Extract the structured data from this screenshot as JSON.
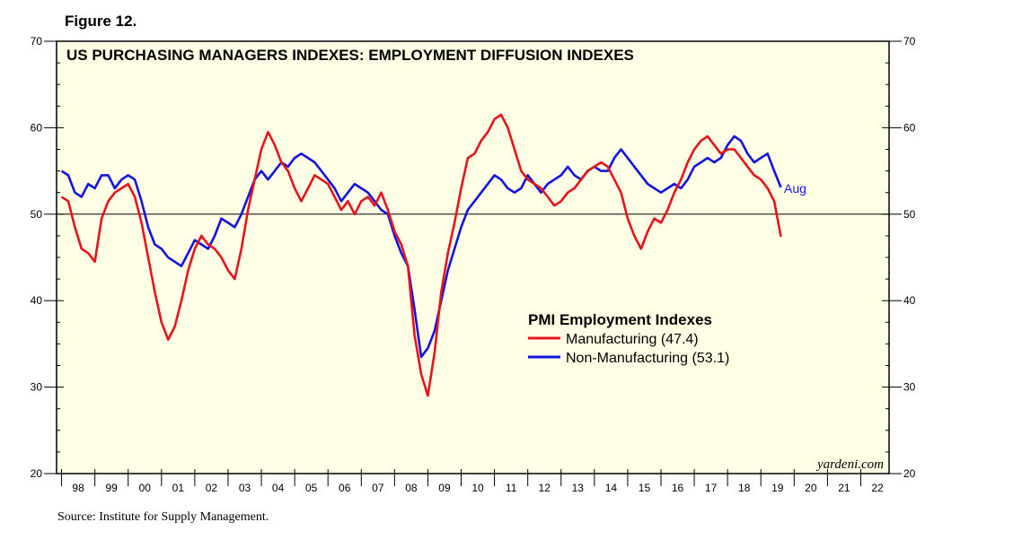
{
  "figure_label": "Figure 12.",
  "source": "Source: Institute for Supply Management.",
  "chart_data": {
    "type": "line",
    "title": "US PURCHASING MANAGERS INDEXES: EMPLOYMENT DIFFUSION INDEXES",
    "xlabel": "",
    "ylabel": "",
    "ylim": [
      20,
      70
    ],
    "y_ticks": [
      20,
      30,
      40,
      50,
      60,
      70
    ],
    "x_range": [
      1997.85,
      2022.85
    ],
    "x_tick_labels": [
      "98",
      "99",
      "00",
      "01",
      "02",
      "03",
      "04",
      "05",
      "06",
      "07",
      "08",
      "09",
      "10",
      "11",
      "12",
      "13",
      "14",
      "15",
      "16",
      "17",
      "18",
      "19",
      "20",
      "21",
      "22"
    ],
    "reference_line": 50,
    "background": "#ffffe6",
    "watermark": "yardeni.com",
    "end_label": "Aug",
    "legend": {
      "title": "PMI Employment Indexes",
      "position": "center-right",
      "entries": [
        {
          "label": "Manufacturing (47.4)",
          "color": "#e8141b"
        },
        {
          "label": "Non-Manufacturing (53.1)",
          "color": "#1414e0"
        }
      ]
    },
    "series": [
      {
        "name": "Manufacturing",
        "color": "#e8141b",
        "x": [
          1998.0,
          1998.2,
          1998.4,
          1998.6,
          1998.8,
          1999.0,
          1999.2,
          1999.4,
          1999.6,
          1999.8,
          2000.0,
          2000.2,
          2000.4,
          2000.6,
          2000.8,
          2001.0,
          2001.2,
          2001.4,
          2001.6,
          2001.8,
          2002.0,
          2002.2,
          2002.4,
          2002.6,
          2002.8,
          2003.0,
          2003.2,
          2003.4,
          2003.6,
          2003.8,
          2004.0,
          2004.2,
          2004.4,
          2004.6,
          2004.8,
          2005.0,
          2005.2,
          2005.4,
          2005.6,
          2005.8,
          2006.0,
          2006.2,
          2006.4,
          2006.6,
          2006.8,
          2007.0,
          2007.2,
          2007.4,
          2007.6,
          2007.8,
          2008.0,
          2008.2,
          2008.4,
          2008.6,
          2008.8,
          2009.0,
          2009.2,
          2009.4,
          2009.6,
          2009.8,
          2010.0,
          2010.2,
          2010.4,
          2010.6,
          2010.8,
          2011.0,
          2011.2,
          2011.4,
          2011.6,
          2011.8,
          2012.0,
          2012.2,
          2012.4,
          2012.6,
          2012.8,
          2013.0,
          2013.2,
          2013.4,
          2013.6,
          2013.8,
          2014.0,
          2014.2,
          2014.4,
          2014.6,
          2014.8,
          2015.0,
          2015.2,
          2015.4,
          2015.6,
          2015.8,
          2016.0,
          2016.2,
          2016.4,
          2016.6,
          2016.8,
          2017.0,
          2017.2,
          2017.4,
          2017.6,
          2017.8,
          2018.0,
          2018.2,
          2018.4,
          2018.6,
          2018.8,
          2019.0,
          2019.2,
          2019.4,
          2019.6
        ],
        "values": [
          52.0,
          51.5,
          48.5,
          46.0,
          45.5,
          44.5,
          49.5,
          51.5,
          52.5,
          53.0,
          53.5,
          52.0,
          49.0,
          45.0,
          41.0,
          37.5,
          35.5,
          37.0,
          40.0,
          43.5,
          46.0,
          47.5,
          46.5,
          46.0,
          45.0,
          43.5,
          42.5,
          46.0,
          50.5,
          54.0,
          57.5,
          59.5,
          58.0,
          56.0,
          55.0,
          53.0,
          51.5,
          53.0,
          54.5,
          54.0,
          53.5,
          52.0,
          50.5,
          51.5,
          50.0,
          51.5,
          52.0,
          51.0,
          52.5,
          50.5,
          48.0,
          46.5,
          44.0,
          36.0,
          31.5,
          29.0,
          34.0,
          41.0,
          45.5,
          49.0,
          53.0,
          56.5,
          57.0,
          58.5,
          59.5,
          61.0,
          61.5,
          60.0,
          57.5,
          55.0,
          54.0,
          53.5,
          53.0,
          52.0,
          51.0,
          51.5,
          52.5,
          53.0,
          54.0,
          55.0,
          55.5,
          56.0,
          55.5,
          54.0,
          52.5,
          49.5,
          47.5,
          46.0,
          48.0,
          49.5,
          49.0,
          50.5,
          52.5,
          54.0,
          56.0,
          57.5,
          58.5,
          59.0,
          58.0,
          57.0,
          57.5,
          57.5,
          56.5,
          55.5,
          54.5,
          54.0,
          53.0,
          51.5,
          47.4
        ]
      },
      {
        "name": "Non-Manufacturing",
        "color": "#1414e0",
        "x": [
          1998.0,
          1998.2,
          1998.4,
          1998.6,
          1998.8,
          1999.0,
          1999.2,
          1999.4,
          1999.6,
          1999.8,
          2000.0,
          2000.2,
          2000.4,
          2000.6,
          2000.8,
          2001.0,
          2001.2,
          2001.4,
          2001.6,
          2001.8,
          2002.0,
          2002.2,
          2002.4,
          2002.6,
          2002.8,
          2003.0,
          2003.2,
          2003.4,
          2003.6,
          2003.8,
          2004.0,
          2004.2,
          2004.4,
          2004.6,
          2004.8,
          2005.0,
          2005.2,
          2005.4,
          2005.6,
          2005.8,
          2006.0,
          2006.2,
          2006.4,
          2006.6,
          2006.8,
          2007.0,
          2007.2,
          2007.4,
          2007.6,
          2007.8,
          2008.0,
          2008.2,
          2008.4,
          2008.6,
          2008.8,
          2009.0,
          2009.2,
          2009.4,
          2009.6,
          2009.8,
          2010.0,
          2010.2,
          2010.4,
          2010.6,
          2010.8,
          2011.0,
          2011.2,
          2011.4,
          2011.6,
          2011.8,
          2012.0,
          2012.2,
          2012.4,
          2012.6,
          2012.8,
          2013.0,
          2013.2,
          2013.4,
          2013.6,
          2013.8,
          2014.0,
          2014.2,
          2014.4,
          2014.6,
          2014.8,
          2015.0,
          2015.2,
          2015.4,
          2015.6,
          2015.8,
          2016.0,
          2016.2,
          2016.4,
          2016.6,
          2016.8,
          2017.0,
          2017.2,
          2017.4,
          2017.6,
          2017.8,
          2018.0,
          2018.2,
          2018.4,
          2018.6,
          2018.8,
          2019.0,
          2019.2,
          2019.4,
          2019.6
        ],
        "values": [
          55.0,
          54.5,
          52.5,
          52.0,
          53.5,
          53.0,
          54.5,
          54.5,
          53.0,
          54.0,
          54.5,
          54.0,
          51.5,
          48.5,
          46.5,
          46.0,
          45.0,
          44.5,
          44.0,
          45.5,
          47.0,
          46.5,
          46.0,
          47.5,
          49.5,
          49.0,
          48.5,
          50.0,
          52.0,
          54.0,
          55.0,
          54.0,
          55.0,
          56.0,
          55.5,
          56.5,
          57.0,
          56.5,
          56.0,
          55.0,
          54.0,
          53.0,
          51.5,
          52.5,
          53.5,
          53.0,
          52.5,
          51.5,
          50.5,
          50.0,
          47.5,
          45.5,
          44.0,
          39.0,
          33.5,
          34.5,
          36.5,
          40.0,
          43.5,
          46.0,
          48.5,
          50.5,
          51.5,
          52.5,
          53.5,
          54.5,
          54.0,
          53.0,
          52.5,
          53.0,
          54.5,
          53.5,
          52.5,
          53.5,
          54.0,
          54.5,
          55.5,
          54.5,
          54.0,
          55.0,
          55.5,
          55.0,
          55.0,
          56.5,
          57.5,
          56.5,
          55.5,
          54.5,
          53.5,
          53.0,
          52.5,
          53.0,
          53.5,
          53.0,
          54.0,
          55.5,
          56.0,
          56.5,
          56.0,
          56.5,
          58.0,
          59.0,
          58.5,
          57.0,
          56.0,
          56.5,
          57.0,
          55.0,
          53.1
        ]
      }
    ]
  }
}
